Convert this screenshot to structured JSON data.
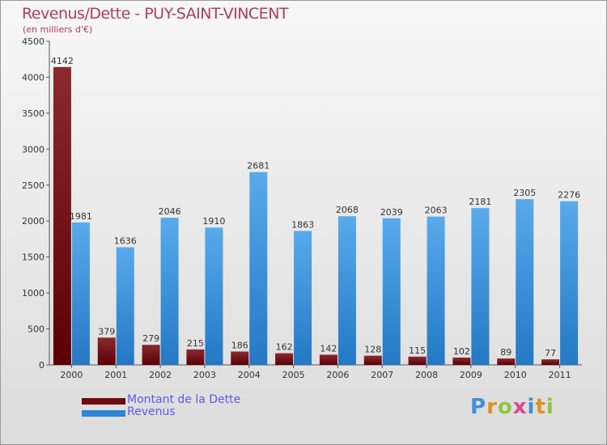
{
  "title": "Revenus/Dette - PUY-SAINT-VINCENT",
  "subtitle": "(en milliers d'€)",
  "logo": "Proxiti",
  "colors": {
    "dette": "#6e0b0f",
    "revenus": "#2f86d4",
    "title": "#b03a64",
    "legend_text": "#5a5af0"
  },
  "legend": [
    {
      "label": "Montant de la Dette",
      "color": "#6e0b0f"
    },
    {
      "label": "Revenus",
      "color": "#2f86d4"
    }
  ],
  "chart_data": {
    "type": "bar",
    "title": "Revenus/Dette - PUY-SAINT-VINCENT",
    "subtitle": "(en milliers d'€)",
    "categories": [
      "2000",
      "2001",
      "2002",
      "2003",
      "2004",
      "2005",
      "2006",
      "2007",
      "2008",
      "2009",
      "2010",
      "2011"
    ],
    "series": [
      {
        "name": "Montant de la Dette",
        "values": [
          4142,
          379,
          279,
          215,
          186,
          162,
          142,
          128,
          115,
          102,
          89,
          77
        ]
      },
      {
        "name": "Revenus",
        "values": [
          1981,
          1636,
          2046,
          1910,
          2681,
          1863,
          2068,
          2039,
          2063,
          2181,
          2305,
          2276
        ]
      }
    ],
    "ylim": [
      0,
      4500
    ],
    "yticks": [
      0,
      500,
      1000,
      1500,
      2000,
      2500,
      3000,
      3500,
      4000,
      4500
    ],
    "grid": false,
    "legend_position": "bottom-left"
  }
}
